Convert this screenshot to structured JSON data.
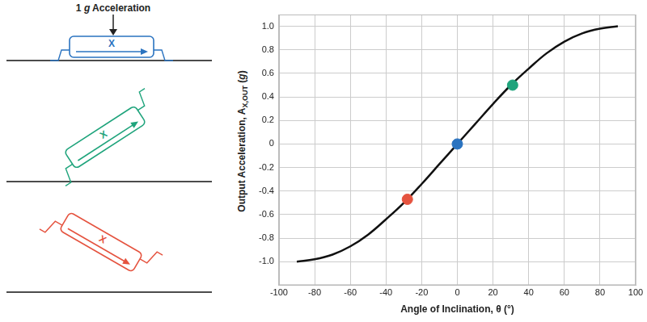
{
  "chart_data": {
    "type": "line",
    "x_label": "Angle of Inclination, θ (°)",
    "y_label": {
      "text": "Output Acceleration, A",
      "subscript": "X,OUT",
      "unit": "(g)"
    },
    "xlim": [
      -100,
      100
    ],
    "xticks": [
      -100,
      -80,
      -60,
      -40,
      -20,
      0,
      20,
      40,
      60,
      80,
      100
    ],
    "ylim": [
      -1.2,
      1.1
    ],
    "yticks": [
      {
        "value": -1,
        "label": "-1.0"
      },
      -0.8,
      -0.6,
      -0.4,
      -0.2,
      0,
      0.2,
      0.4,
      0.6,
      0.8,
      {
        "value": 1,
        "label": "1.0"
      }
    ],
    "grid": true,
    "x": [
      -90,
      -80,
      -70,
      -60,
      -50,
      -40,
      -30,
      -20,
      -10,
      0,
      10,
      20,
      30,
      40,
      50,
      60,
      70,
      80,
      90
    ],
    "series": [
      {
        "color": "#111111",
        "line_style": "solid",
        "values": [
          -1.0,
          -0.98,
          -0.94,
          -0.87,
          -0.77,
          -0.64,
          -0.5,
          -0.34,
          -0.17,
          0,
          0.17,
          0.34,
          0.5,
          0.64,
          0.77,
          0.87,
          0.94,
          0.98,
          1.0
        ]
      },
      {
        "type": "scatter",
        "marker": "circle",
        "x": [
          -28,
          0,
          31
        ],
        "values": [
          -0.47,
          0,
          0.5
        ],
        "colors": [
          "#e5533f",
          "#2a73c0",
          "#1fa47c"
        ]
      }
    ]
  },
  "diagram": {
    "label": "1 g Acceleration",
    "sensors": [
      {
        "label": "X",
        "color": "#2a73c0"
      },
      {
        "label": "X",
        "color": "#1fa47c"
      },
      {
        "label": "X",
        "color": "#e5533f"
      }
    ]
  }
}
